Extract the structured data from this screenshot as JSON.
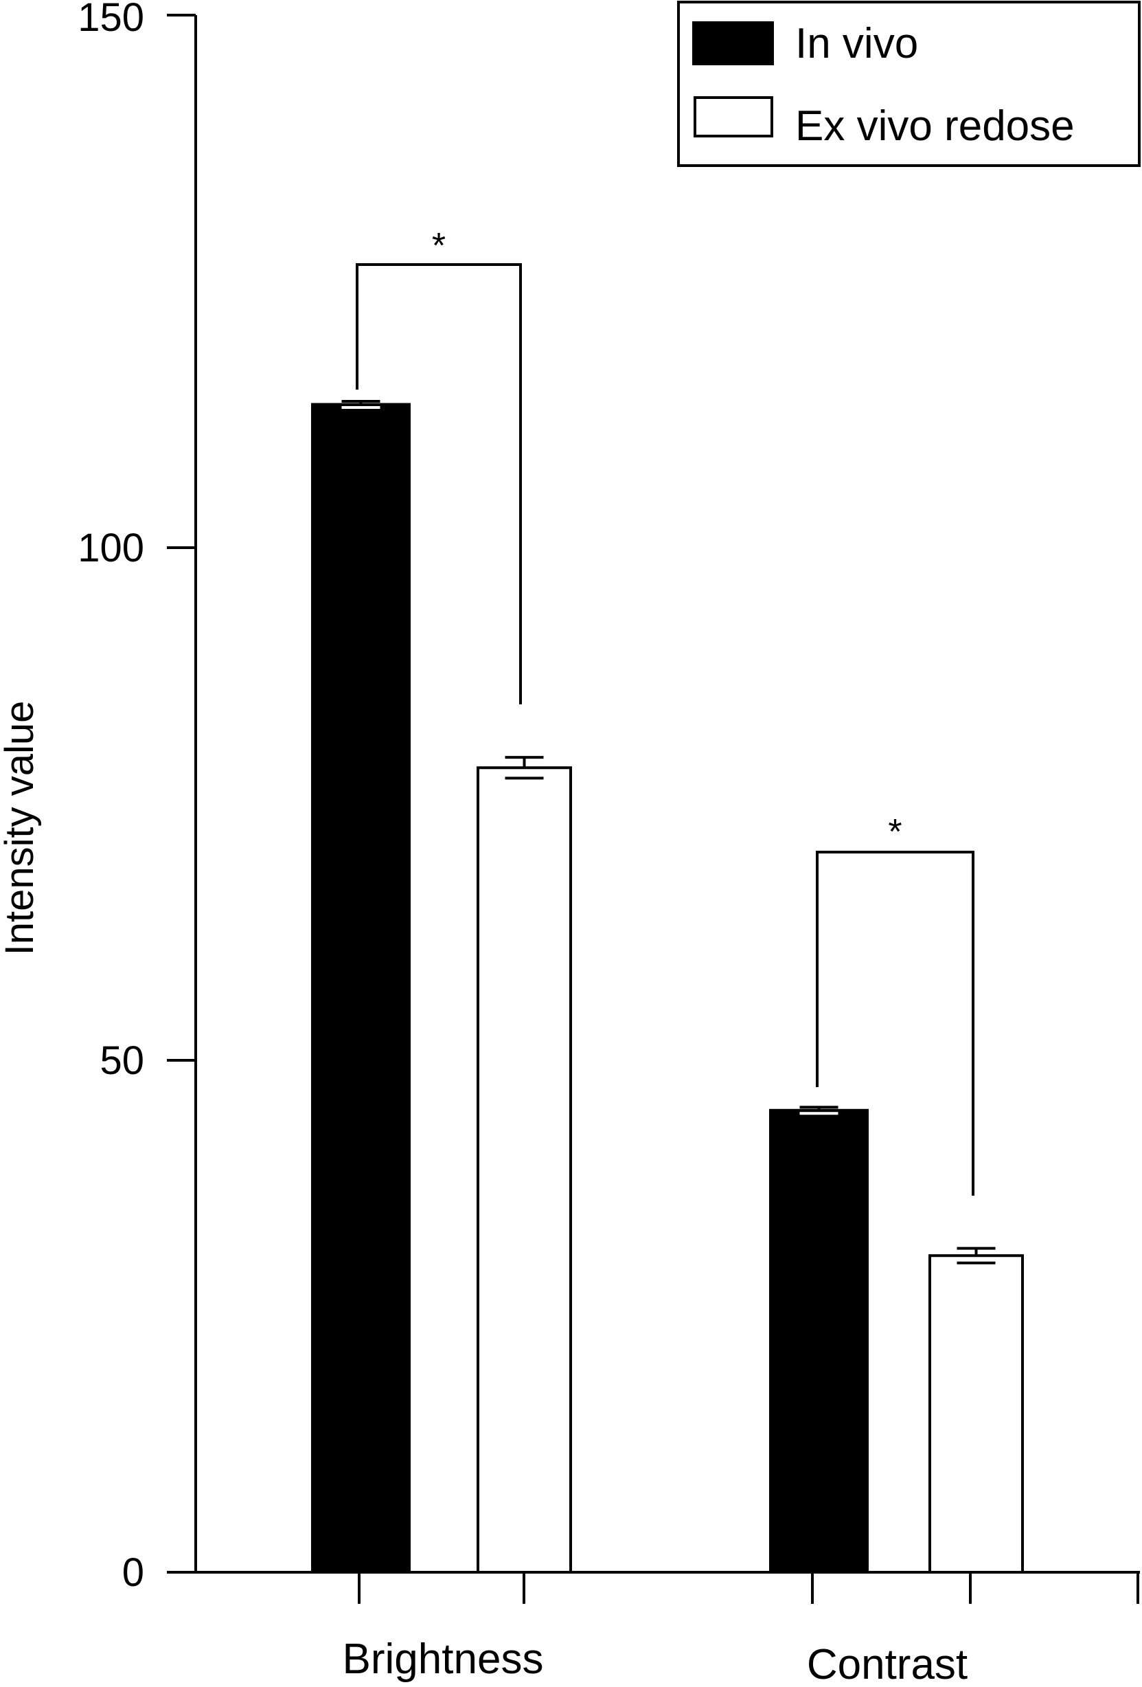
{
  "chart_data": {
    "type": "bar",
    "title": "",
    "xlabel": "",
    "ylabel": "Intensity value",
    "ylim": [
      0,
      150
    ],
    "yticks": [
      "0",
      "50",
      "100",
      "150"
    ],
    "grid": false,
    "legend_position": "top-right",
    "categories": [
      "Brightness",
      "Contrast"
    ],
    "series": [
      {
        "name": "In vivo",
        "fill": "#000000",
        "values": [
          112.5,
          44.5
        ],
        "error": [
          0.3,
          0.3
        ]
      },
      {
        "name": "Ex vivo redose",
        "fill": "#ffffff",
        "values": [
          77.5,
          30.5
        ],
        "error": [
          1.0,
          0.7
        ]
      }
    ],
    "significance": [
      {
        "category": "Brightness",
        "label": "*"
      },
      {
        "category": "Contrast",
        "label": "*"
      }
    ]
  }
}
